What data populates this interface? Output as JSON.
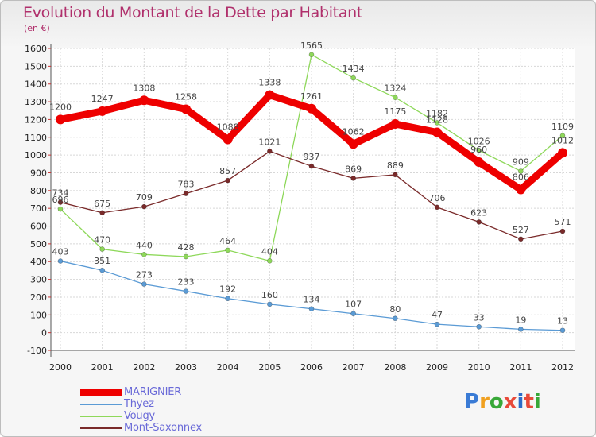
{
  "header": {
    "title": "Evolution du Montant de la Dette par Habitant",
    "subtitle": "(en €)"
  },
  "brand": {
    "letters": [
      {
        "ch": "P",
        "color": "#3a7bd5"
      },
      {
        "ch": "r",
        "color": "#f0a020"
      },
      {
        "ch": "o",
        "color": "#38a838"
      },
      {
        "ch": "x",
        "color": "#e84a3a"
      },
      {
        "ch": "i",
        "color": "#2c6cc8"
      },
      {
        "ch": "t",
        "color": "#e84a3a"
      },
      {
        "ch": "i",
        "color": "#38a838"
      }
    ]
  },
  "chart_data": {
    "type": "line",
    "title": "Evolution du Montant de la Dette par Habitant",
    "subtitle": "(en €)",
    "x": [
      2000,
      2001,
      2002,
      2003,
      2004,
      2005,
      2006,
      2007,
      2008,
      2009,
      2010,
      2011,
      2012
    ],
    "ylim": [
      -100,
      1600
    ],
    "yticks": [
      -100,
      0,
      100,
      200,
      300,
      400,
      500,
      600,
      700,
      800,
      900,
      1000,
      1100,
      1200,
      1300,
      1400,
      1500,
      1600
    ],
    "grid": true,
    "legend_position": "bottom-left",
    "series": [
      {
        "name": "MARIGNIER",
        "color": "#ee0000",
        "values": [
          1200,
          1247,
          1308,
          1258,
          1088,
          1338,
          1261,
          1062,
          1175,
          1128,
          960,
          806,
          1012
        ]
      },
      {
        "name": "Thyez",
        "color": "#5b9bd5",
        "values": [
          403,
          351,
          273,
          233,
          192,
          160,
          134,
          107,
          80,
          47,
          33,
          19,
          13
        ]
      },
      {
        "name": "Vougy",
        "color": "#8ed85a",
        "values": [
          696,
          470,
          440,
          428,
          464,
          404,
          1565,
          1434,
          1324,
          1182,
          1026,
          909,
          1109
        ]
      },
      {
        "name": "Mont-Saxonnex",
        "color": "#7a2a2a",
        "values": [
          734,
          675,
          709,
          783,
          857,
          1021,
          937,
          869,
          889,
          706,
          623,
          527,
          571
        ]
      }
    ]
  }
}
